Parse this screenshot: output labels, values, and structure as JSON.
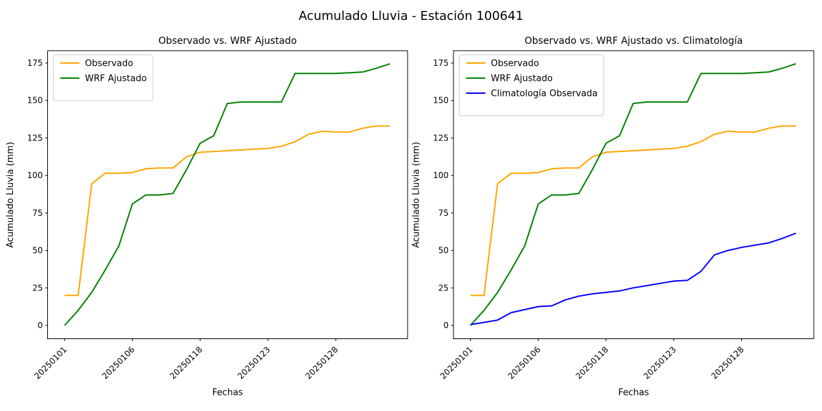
{
  "figure": {
    "suptitle": "Acumulado Lluvia - Estación 100641",
    "background": "#ffffff",
    "text_color": "#000000"
  },
  "chart_data": [
    {
      "type": "line",
      "title": "Observado vs. WRF Ajustado",
      "xlabel": "Fechas",
      "ylabel": "Acumulado Lluvia (mm)",
      "x_type": "category-index",
      "n_points": 25,
      "x_ticks": {
        "indices": [
          0,
          5,
          10,
          15,
          20
        ],
        "labels": [
          "20250101",
          "20250106",
          "20250118",
          "20250123",
          "20250128"
        ],
        "rotation": 45
      },
      "y_ticks": [
        0,
        25,
        50,
        75,
        100,
        125,
        150,
        175
      ],
      "ylim": [
        -9,
        183
      ],
      "grid": false,
      "legend_position": "upper left",
      "series": [
        {
          "name": "Observado",
          "color": "#FFA500",
          "values": [
            20,
            20,
            94.5,
            101.5,
            101.5,
            102,
            104.5,
            105,
            105,
            112.5,
            115.5,
            116,
            116.5,
            117,
            117.5,
            118,
            119.5,
            122.5,
            127.5,
            129.5,
            129,
            129,
            131.5,
            133,
            133
          ]
        },
        {
          "name": "WRF Ajustado",
          "color": "#008000",
          "values": [
            0,
            10,
            22,
            37,
            53,
            81,
            87,
            87,
            88,
            104,
            121.5,
            126.5,
            148,
            149,
            149,
            149,
            149,
            168,
            168,
            168,
            168,
            168.5,
            169,
            171.5,
            174.5
          ]
        }
      ]
    },
    {
      "type": "line",
      "title": "Observado vs. WRF Ajustado vs. Climatología",
      "xlabel": "Fechas",
      "ylabel": "Acumulado Lluvia (mm)",
      "x_type": "category-index",
      "n_points": 25,
      "x_ticks": {
        "indices": [
          0,
          5,
          10,
          15,
          20
        ],
        "labels": [
          "20250101",
          "20250106",
          "20250118",
          "20250123",
          "20250128"
        ],
        "rotation": 45
      },
      "y_ticks": [
        0,
        25,
        50,
        75,
        100,
        125,
        150,
        175
      ],
      "ylim": [
        -9,
        183
      ],
      "grid": false,
      "legend_position": "upper left",
      "series": [
        {
          "name": "Observado",
          "color": "#FFA500",
          "values": [
            20,
            20,
            94.5,
            101.5,
            101.5,
            102,
            104.5,
            105,
            105,
            112.5,
            115.5,
            116,
            116.5,
            117,
            117.5,
            118,
            119.5,
            122.5,
            127.5,
            129.5,
            129,
            129,
            131.5,
            133,
            133
          ]
        },
        {
          "name": "WRF Ajustado",
          "color": "#008000",
          "values": [
            0,
            10,
            22,
            37,
            53,
            81,
            87,
            87,
            88,
            104,
            121.5,
            126.5,
            148,
            149,
            149,
            149,
            149,
            168,
            168,
            168,
            168,
            168.5,
            169,
            171.5,
            174.5
          ]
        },
        {
          "name": "Climatología Observada",
          "color": "#0000FF",
          "values": [
            0.5,
            2,
            3.5,
            8.5,
            10.5,
            12.5,
            13,
            17,
            19.5,
            21,
            22,
            23,
            25,
            26.5,
            28,
            29.5,
            30,
            36,
            47,
            50,
            52,
            53.5,
            55,
            58,
            61.5
          ]
        }
      ]
    }
  ]
}
